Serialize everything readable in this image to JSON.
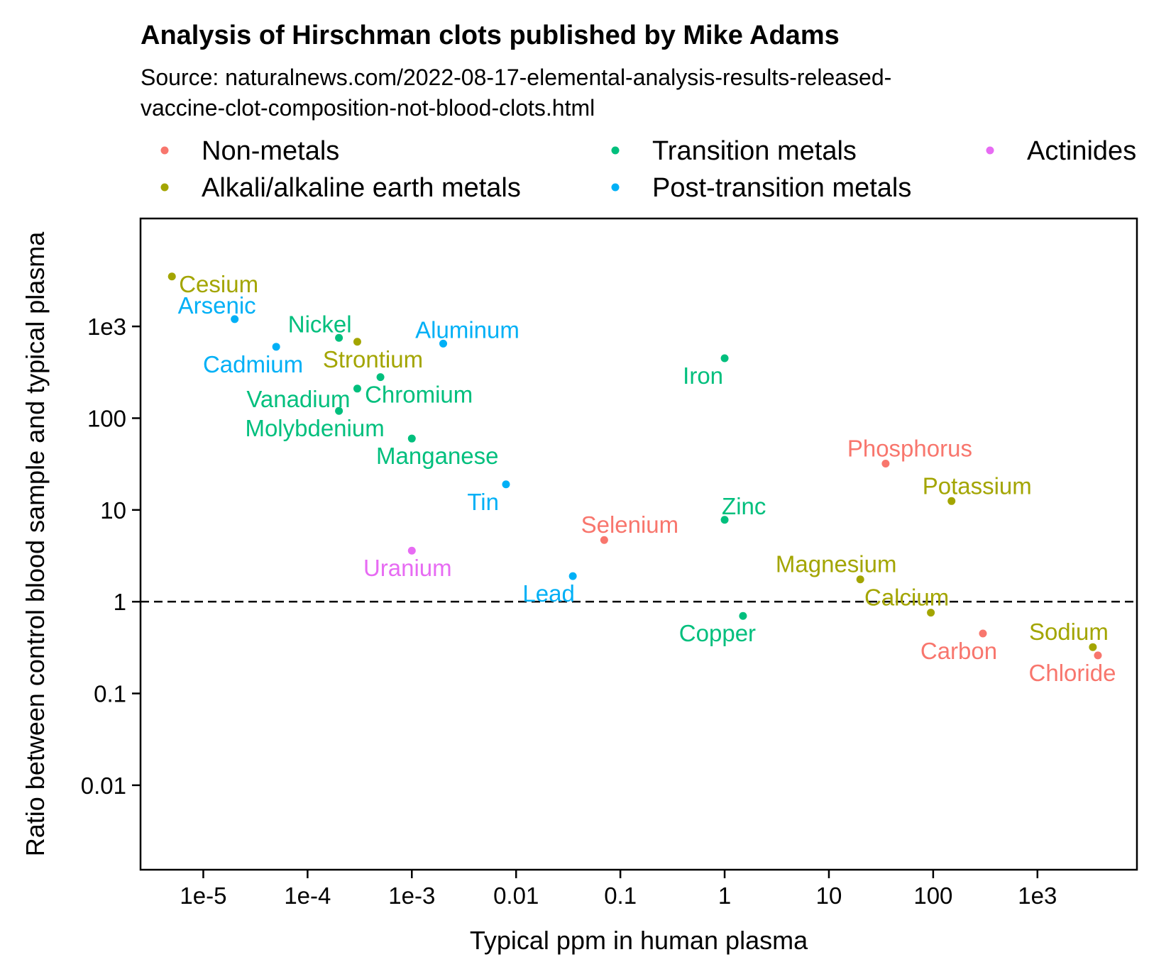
{
  "chart_data": {
    "type": "scatter",
    "title": "Analysis of Hirschman clots published by Mike Adams",
    "subtitle_lines": [
      "Source: naturalnews.com/2022-08-17-elemental-analysis-results-released-",
      "vaccine-clot-composition-not-blood-clots.html"
    ],
    "xlabel": "Typical ppm in human plasma",
    "ylabel": "Ratio between control blood sample and typical plasma",
    "x_scale": "log10",
    "y_scale": "log10",
    "xlim": [
      2.5e-06,
      9000
    ],
    "ylim": [
      0.0012,
      15000
    ],
    "x_ticks": [
      {
        "value": 1e-05,
        "label": "1e-5"
      },
      {
        "value": 0.0001,
        "label": "1e-4"
      },
      {
        "value": 0.001,
        "label": "1e-3"
      },
      {
        "value": 0.01,
        "label": "0.01"
      },
      {
        "value": 0.1,
        "label": "0.1"
      },
      {
        "value": 1,
        "label": "1"
      },
      {
        "value": 10,
        "label": "10"
      },
      {
        "value": 100,
        "label": "100"
      },
      {
        "value": 1000,
        "label": "1e3"
      }
    ],
    "y_ticks": [
      {
        "value": 0.01,
        "label": "0.01"
      },
      {
        "value": 0.1,
        "label": "0.1"
      },
      {
        "value": 1,
        "label": "1"
      },
      {
        "value": 10,
        "label": "10"
      },
      {
        "value": 100,
        "label": "100"
      },
      {
        "value": 1000,
        "label": "1e3"
      }
    ],
    "reference_line": {
      "y": 1,
      "style": "dashed"
    },
    "grid": false,
    "legend_placement": "top",
    "categories": [
      {
        "name": "Non-metals",
        "color": "#F8766D"
      },
      {
        "name": "Alkali/alkaline earth metals",
        "color": "#A3A500"
      },
      {
        "name": "Transition metals",
        "color": "#00BF7D"
      },
      {
        "name": "Post-transition metals",
        "color": "#00B0F6"
      },
      {
        "name": "Actinides",
        "color": "#E76BF3"
      }
    ],
    "points": [
      {
        "label": "Cesium",
        "x": 5e-06,
        "y": 3500,
        "category": 1,
        "label_anchor": "start",
        "dx": 10,
        "dy": 22
      },
      {
        "label": "Arsenic",
        "x": 2e-05,
        "y": 1200,
        "category": 3,
        "label_anchor": "end",
        "dx": 30,
        "dy": -8
      },
      {
        "label": "Nickel",
        "x": 0.0002,
        "y": 750,
        "category": 2,
        "label_anchor": "end",
        "dx": 18,
        "dy": -8
      },
      {
        "label": "Strontium",
        "x": 0.0003,
        "y": 680,
        "category": 1,
        "label_anchor": "middle",
        "dx": 22,
        "dy": 36
      },
      {
        "label": "Cadmium",
        "x": 5e-05,
        "y": 600,
        "category": 3,
        "label_anchor": "end",
        "dx": 38,
        "dy": 36
      },
      {
        "label": "Aluminum",
        "x": 0.002,
        "y": 650,
        "category": 3,
        "label_anchor": "middle",
        "dx": 34,
        "dy": -8
      },
      {
        "label": "Iron",
        "x": 1,
        "y": 450,
        "category": 2,
        "label_anchor": "end",
        "dx": -2,
        "dy": 36
      },
      {
        "label": "Chromium",
        "x": 0.0005,
        "y": 280,
        "category": 2,
        "label_anchor": "start",
        "dx": -22,
        "dy": 36
      },
      {
        "label": "Vanadium",
        "x": 0.0003,
        "y": 210,
        "category": 2,
        "label_anchor": "end",
        "dx": -10,
        "dy": 26
      },
      {
        "label": "Molybdenium",
        "x": 0.0002,
        "y": 120,
        "category": 2,
        "label_anchor": "middle",
        "dx": -34,
        "dy": 36
      },
      {
        "label": "Manganese",
        "x": 0.001,
        "y": 60,
        "category": 2,
        "label_anchor": "middle",
        "dx": 36,
        "dy": 36
      },
      {
        "label": "Tin",
        "x": 0.008,
        "y": 19,
        "category": 3,
        "label_anchor": "end",
        "dx": -10,
        "dy": 36
      },
      {
        "label": "Uranium",
        "x": 0.001,
        "y": 3.6,
        "category": 4,
        "label_anchor": "middle",
        "dx": -6,
        "dy": 36
      },
      {
        "label": "Lead",
        "x": 0.035,
        "y": 1.9,
        "category": 3,
        "label_anchor": "middle",
        "dx": -34,
        "dy": 36
      },
      {
        "label": "Selenium",
        "x": 0.07,
        "y": 4.7,
        "category": 0,
        "label_anchor": "middle",
        "dx": 36,
        "dy": -10
      },
      {
        "label": "Zinc",
        "x": 1,
        "y": 7.8,
        "category": 2,
        "label_anchor": "start",
        "dx": -4,
        "dy": -8
      },
      {
        "label": "Copper",
        "x": 1.5,
        "y": 0.7,
        "category": 2,
        "label_anchor": "middle",
        "dx": -36,
        "dy": 36
      },
      {
        "label": "Phosphorus",
        "x": 35,
        "y": 32,
        "category": 0,
        "label_anchor": "middle",
        "dx": 34,
        "dy": -10
      },
      {
        "label": "Potassium",
        "x": 150,
        "y": 12.5,
        "category": 1,
        "label_anchor": "middle",
        "dx": 36,
        "dy": -10
      },
      {
        "label": "Magnesium",
        "x": 20,
        "y": 1.75,
        "category": 1,
        "label_anchor": "middle",
        "dx": -34,
        "dy": -10
      },
      {
        "label": "Calcium",
        "x": 95,
        "y": 0.76,
        "category": 1,
        "label_anchor": "middle",
        "dx": -34,
        "dy": -10
      },
      {
        "label": "Carbon",
        "x": 300,
        "y": 0.45,
        "category": 0,
        "label_anchor": "middle",
        "dx": -34,
        "dy": 36
      },
      {
        "label": "Sodium",
        "x": 3400,
        "y": 0.32,
        "category": 1,
        "label_anchor": "middle",
        "dx": -34,
        "dy": -10
      },
      {
        "label": "Chloride",
        "x": 3800,
        "y": 0.26,
        "category": 0,
        "label_anchor": "middle",
        "dx": -36,
        "dy": 36
      }
    ]
  }
}
